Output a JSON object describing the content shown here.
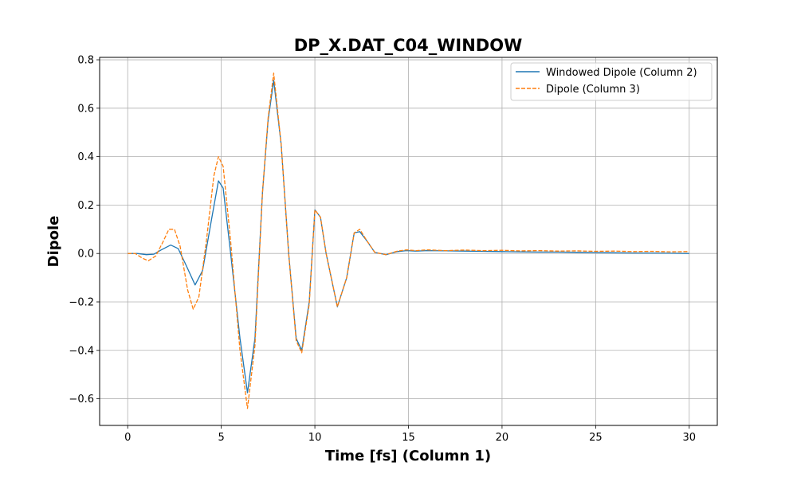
{
  "chart_data": {
    "type": "line",
    "title": "DP_X.DAT_C04_WINDOW",
    "xlabel": "Time [fs] (Column 1)",
    "ylabel": "Dipole",
    "xlim": [
      -1.5,
      31.5
    ],
    "ylim": [
      -0.71,
      0.81
    ],
    "xticks": [
      0,
      5,
      10,
      15,
      20,
      25,
      30
    ],
    "yticks": [
      -0.6,
      -0.4,
      -0.2,
      0.0,
      0.2,
      0.4,
      0.6,
      0.8
    ],
    "xtick_labels": [
      "0",
      "5",
      "10",
      "15",
      "20",
      "25",
      "30"
    ],
    "ytick_labels": [
      "−0.6",
      "−0.4",
      "−0.2",
      "0.0",
      "0.2",
      "0.4",
      "0.6",
      "0.8"
    ],
    "grid": true,
    "legend_position": "top-right",
    "series": [
      {
        "name": "Windowed Dipole (Column 2)",
        "color": "#1f77b4",
        "style": "solid",
        "x": [
          0,
          0.5,
          1.0,
          1.4,
          1.8,
          2.3,
          2.7,
          3.1,
          3.6,
          4.0,
          4.5,
          4.85,
          5.1,
          5.5,
          6.0,
          6.4,
          6.8,
          7.2,
          7.5,
          7.8,
          8.2,
          8.6,
          9.0,
          9.3,
          9.7,
          10.0,
          10.3,
          10.6,
          11.2,
          11.7,
          12.1,
          12.4,
          12.8,
          13.2,
          13.8,
          14.4,
          14.9,
          15.4,
          16.0,
          17.0,
          18.0,
          19.0,
          20.0,
          21.0,
          22.0,
          23.0,
          24.0,
          25.0,
          26.0,
          27.0,
          28.0,
          29.0,
          30.0
        ],
        "y": [
          0.0,
          0.0,
          -0.005,
          -0.003,
          0.015,
          0.035,
          0.02,
          -0.045,
          -0.13,
          -0.07,
          0.15,
          0.3,
          0.27,
          0.0,
          -0.35,
          -0.575,
          -0.35,
          0.25,
          0.55,
          0.715,
          0.45,
          0.0,
          -0.35,
          -0.4,
          -0.2,
          0.18,
          0.15,
          0.0,
          -0.22,
          -0.1,
          0.085,
          0.09,
          0.05,
          0.005,
          -0.005,
          0.008,
          0.012,
          0.01,
          0.012,
          0.011,
          0.01,
          0.009,
          0.008,
          0.007,
          0.006,
          0.006,
          0.005,
          0.004,
          0.003,
          0.002,
          0.002,
          0.001,
          0.0
        ]
      },
      {
        "name": "Dipole (Column 3)",
        "color": "#ff7f0e",
        "style": "dashed",
        "x": [
          0,
          0.4,
          0.8,
          1.1,
          1.5,
          1.9,
          2.2,
          2.5,
          2.8,
          3.2,
          3.5,
          3.8,
          4.2,
          4.6,
          4.85,
          5.1,
          5.5,
          6.0,
          6.4,
          6.8,
          7.2,
          7.5,
          7.8,
          8.2,
          8.6,
          9.0,
          9.3,
          9.7,
          10.0,
          10.3,
          10.6,
          11.2,
          11.7,
          12.1,
          12.4,
          12.8,
          13.2,
          13.8,
          14.4,
          14.9,
          15.4,
          16.0,
          17.0,
          18.0,
          19.0,
          20.0,
          21.0,
          22.0,
          23.0,
          24.0,
          25.0,
          26.0,
          27.0,
          28.0,
          29.0,
          30.0
        ],
        "y": [
          0.0,
          0.0,
          -0.02,
          -0.03,
          -0.01,
          0.05,
          0.1,
          0.1,
          0.03,
          -0.15,
          -0.23,
          -0.18,
          0.05,
          0.32,
          0.4,
          0.36,
          0.05,
          -0.4,
          -0.64,
          -0.38,
          0.25,
          0.56,
          0.745,
          0.45,
          0.0,
          -0.36,
          -0.41,
          -0.21,
          0.18,
          0.15,
          0.0,
          -0.22,
          -0.1,
          0.085,
          0.1,
          0.05,
          0.005,
          -0.005,
          0.01,
          0.015,
          0.012,
          0.015,
          0.012,
          0.014,
          0.012,
          0.013,
          0.011,
          0.012,
          0.01,
          0.011,
          0.009,
          0.01,
          0.008,
          0.009,
          0.007,
          0.008
        ]
      }
    ]
  }
}
